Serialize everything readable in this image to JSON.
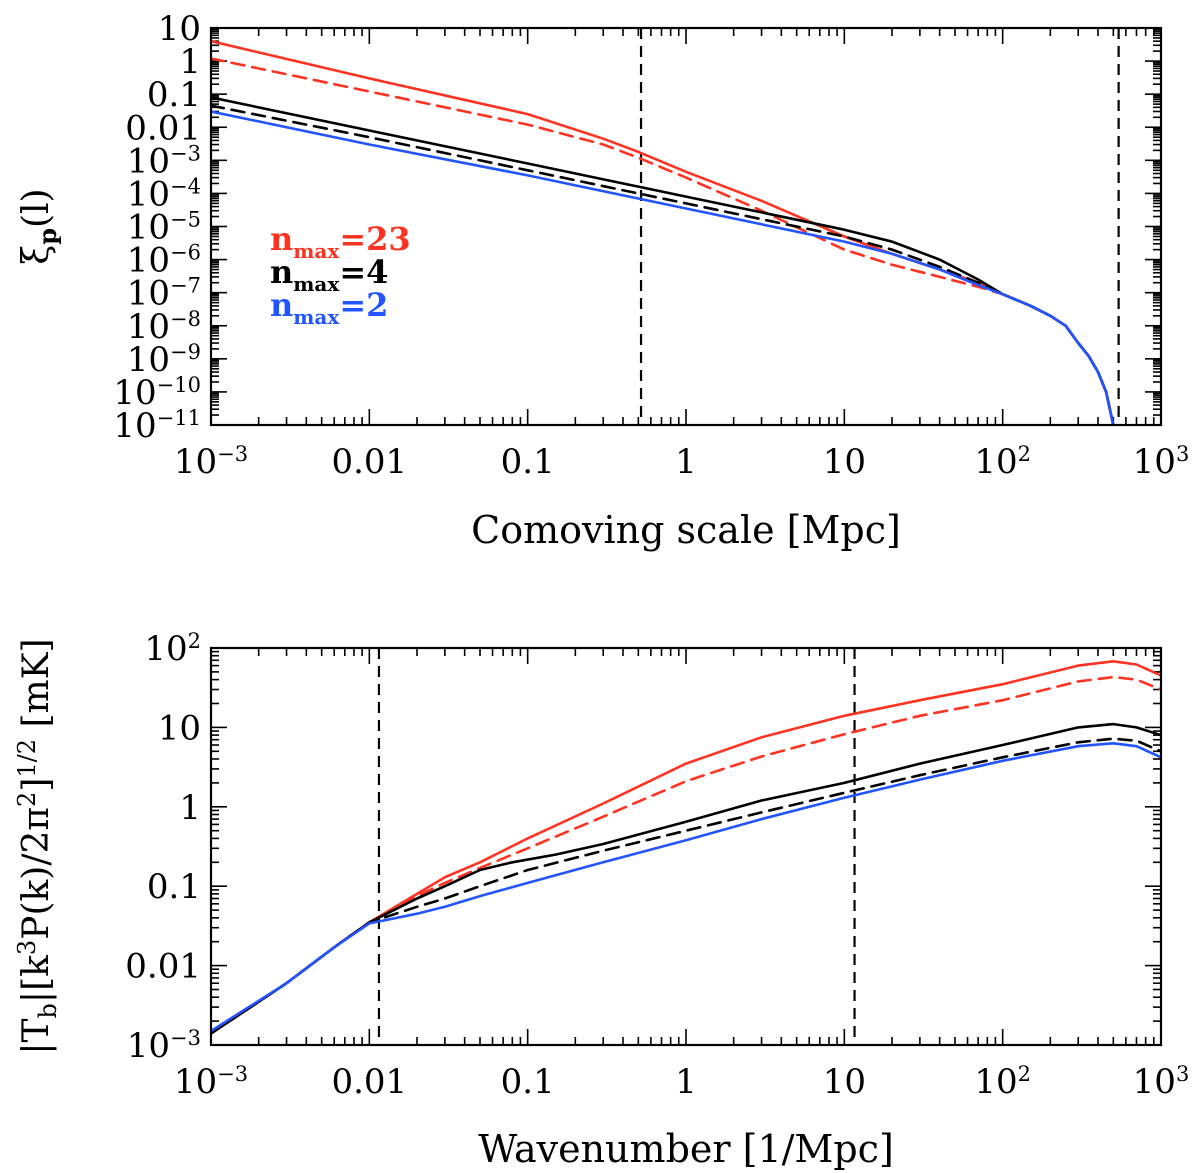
{
  "chart_data": [
    {
      "type": "line",
      "xlabel": "Comoving scale [Mpc]",
      "ylabel_symbol": "ξ",
      "ylabel_sub": "p",
      "ylabel_arg": "(l)",
      "x_scale": "log",
      "y_scale": "log",
      "xlim": [
        0.001,
        1000
      ],
      "ylim": [
        1e-11,
        10
      ],
      "x_ticks": [
        {
          "value": 0.001,
          "base": "10",
          "exp": "−3"
        },
        {
          "value": 0.01,
          "text": "0.01"
        },
        {
          "value": 0.1,
          "text": "0.1"
        },
        {
          "value": 1,
          "text": "1"
        },
        {
          "value": 10,
          "text": "10"
        },
        {
          "value": 100,
          "base": "10",
          "exp": "2"
        },
        {
          "value": 1000,
          "base": "10",
          "exp": "3"
        }
      ],
      "y_ticks": [
        {
          "value": 10,
          "text": "10"
        },
        {
          "value": 1,
          "text": "1"
        },
        {
          "value": 0.1,
          "text": "0.1"
        },
        {
          "value": 0.01,
          "text": "0.01"
        },
        {
          "value": 0.001,
          "base": "10",
          "exp": "−3"
        },
        {
          "value": 0.0001,
          "base": "10",
          "exp": "−4"
        },
        {
          "value": 1e-05,
          "base": "10",
          "exp": "−5"
        },
        {
          "value": 1e-06,
          "base": "10",
          "exp": "−6"
        },
        {
          "value": 1e-07,
          "base": "10",
          "exp": "−7"
        },
        {
          "value": 1e-08,
          "base": "10",
          "exp": "−8"
        },
        {
          "value": 1e-09,
          "base": "10",
          "exp": "−9"
        },
        {
          "value": 1e-10,
          "base": "10",
          "exp": "−10"
        },
        {
          "value": 1e-11,
          "base": "10",
          "exp": "−11"
        }
      ],
      "vlines": [
        0.52,
        540
      ],
      "legend": {
        "placement": "left",
        "entries": [
          {
            "main": "n",
            "sub": "max",
            "value": "=23",
            "color": "#ff3322"
          },
          {
            "main": "n",
            "sub": "max",
            "value": "=4",
            "color": "#000000"
          },
          {
            "main": "n",
            "sub": "max",
            "value": "=2",
            "color": "#2255ff"
          }
        ]
      },
      "series": [
        {
          "color": "#ff3322",
          "style": "solid",
          "x": [
            0.001,
            0.01,
            0.1,
            0.3,
            0.5,
            1,
            3,
            10,
            20,
            40,
            70,
            100,
            150,
            200,
            250,
            300,
            350,
            400,
            450,
            500
          ],
          "y": [
            4,
            0.3,
            0.025,
            0.0045,
            0.0018,
            0.00045,
            6e-05,
            5e-06,
            1.5e-06,
            5e-07,
            2e-07,
            9e-08,
            4e-08,
            2e-08,
            1e-08,
            3e-09,
            1.2e-09,
            4e-10,
            1e-10,
            1e-11
          ]
        },
        {
          "color": "#ff3322",
          "style": "dashed",
          "x": [
            0.001,
            0.01,
            0.1,
            0.3,
            0.5,
            1,
            3,
            10,
            20,
            40,
            70,
            100,
            150,
            200,
            250,
            300,
            350,
            400,
            450,
            500
          ],
          "y": [
            1.2,
            0.12,
            0.012,
            0.003,
            0.0012,
            0.0003,
            3e-05,
            2e-06,
            7e-07,
            3e-07,
            1.5e-07,
            9e-08,
            4e-08,
            2e-08,
            1e-08,
            3e-09,
            1.2e-09,
            4e-10,
            1e-10,
            1e-11
          ]
        },
        {
          "color": "#000000",
          "style": "solid",
          "x": [
            0.001,
            0.01,
            0.1,
            1,
            10,
            20,
            40,
            70,
            100,
            150,
            200,
            250,
            300,
            350,
            400,
            450,
            500
          ],
          "y": [
            0.08,
            0.008,
            0.0008,
            8e-05,
            8e-06,
            3.5e-06,
            1e-06,
            2.5e-07,
            9e-08,
            4e-08,
            2e-08,
            1e-08,
            3e-09,
            1.2e-09,
            4e-10,
            1e-10,
            1e-11
          ]
        },
        {
          "color": "#000000",
          "style": "dashed",
          "x": [
            0.001,
            0.01,
            0.1,
            1,
            10,
            20,
            40,
            70,
            100,
            150,
            200,
            250,
            300,
            350,
            400,
            450,
            500
          ],
          "y": [
            0.045,
            0.005,
            0.0005,
            5e-05,
            5e-06,
            2e-06,
            6e-07,
            2e-07,
            9e-08,
            4e-08,
            2e-08,
            1e-08,
            3e-09,
            1.2e-09,
            4e-10,
            1e-10,
            1e-11
          ]
        },
        {
          "color": "#2255ff",
          "style": "solid",
          "x": [
            0.001,
            0.01,
            0.1,
            1,
            10,
            20,
            40,
            70,
            100,
            150,
            200,
            250,
            300,
            350,
            400,
            450,
            500
          ],
          "y": [
            0.03,
            0.003,
            0.00035,
            3.5e-05,
            3.5e-06,
            1.5e-06,
            5e-07,
            1.7e-07,
            9e-08,
            4e-08,
            2e-08,
            1e-08,
            3e-09,
            1.2e-09,
            4e-10,
            1e-10,
            1e-11
          ]
        }
      ]
    },
    {
      "type": "line",
      "xlabel": "Wavenumber [1/Mpc]",
      "ylabel_parts": [
        "|T",
        "b",
        "|[k",
        "3",
        "P(k)/2π",
        "2",
        "]",
        "1/2",
        " [mK]"
      ],
      "x_scale": "log",
      "y_scale": "log",
      "xlim": [
        0.001,
        1000
      ],
      "ylim": [
        0.001,
        100
      ],
      "x_ticks": [
        {
          "value": 0.001,
          "base": "10",
          "exp": "−3"
        },
        {
          "value": 0.01,
          "text": "0.01"
        },
        {
          "value": 0.1,
          "text": "0.1"
        },
        {
          "value": 1,
          "text": "1"
        },
        {
          "value": 10,
          "text": "10"
        },
        {
          "value": 100,
          "base": "10",
          "exp": "2"
        },
        {
          "value": 1000,
          "base": "10",
          "exp": "3"
        }
      ],
      "y_ticks": [
        {
          "value": 100,
          "base": "10",
          "exp": "2"
        },
        {
          "value": 10,
          "text": "10"
        },
        {
          "value": 1,
          "text": "1"
        },
        {
          "value": 0.1,
          "text": "0.1"
        },
        {
          "value": 0.01,
          "text": "0.01"
        },
        {
          "value": 0.001,
          "base": "10",
          "exp": "−3"
        }
      ],
      "vlines": [
        0.0115,
        11.6
      ],
      "series": [
        {
          "color": "#ff3322",
          "style": "solid",
          "x": [
            0.001,
            0.003,
            0.006,
            0.01,
            0.02,
            0.03,
            0.05,
            0.1,
            0.3,
            1,
            3,
            10,
            30,
            100,
            300,
            500,
            700,
            1000
          ],
          "y": [
            0.0014,
            0.006,
            0.017,
            0.035,
            0.08,
            0.13,
            0.2,
            0.4,
            1.1,
            3.5,
            7.5,
            14,
            22,
            35,
            60,
            68,
            62,
            45
          ]
        },
        {
          "color": "#ff3322",
          "style": "dashed",
          "x": [
            0.001,
            0.003,
            0.006,
            0.01,
            0.02,
            0.03,
            0.05,
            0.1,
            0.3,
            1,
            3,
            10,
            30,
            100,
            300,
            500,
            700,
            1000
          ],
          "y": [
            0.0014,
            0.006,
            0.017,
            0.035,
            0.075,
            0.11,
            0.17,
            0.3,
            0.75,
            2.1,
            4.3,
            8.2,
            14,
            22,
            38,
            43,
            40,
            30
          ]
        },
        {
          "color": "#000000",
          "style": "solid",
          "x": [
            0.001,
            0.003,
            0.006,
            0.01,
            0.02,
            0.03,
            0.05,
            0.08,
            0.15,
            0.3,
            1,
            3,
            10,
            30,
            100,
            300,
            500,
            700,
            1000
          ],
          "y": [
            0.0014,
            0.006,
            0.017,
            0.035,
            0.07,
            0.1,
            0.16,
            0.2,
            0.25,
            0.34,
            0.65,
            1.2,
            2,
            3.5,
            6,
            10,
            11,
            10,
            8
          ]
        },
        {
          "color": "#000000",
          "style": "dashed",
          "x": [
            0.001,
            0.003,
            0.006,
            0.01,
            0.02,
            0.03,
            0.05,
            0.1,
            0.3,
            1,
            3,
            10,
            30,
            100,
            300,
            500,
            700,
            1000
          ],
          "y": [
            0.0014,
            0.006,
            0.017,
            0.035,
            0.055,
            0.07,
            0.1,
            0.16,
            0.28,
            0.5,
            0.85,
            1.5,
            2.5,
            4.2,
            6.5,
            7.2,
            6.8,
            5
          ]
        },
        {
          "color": "#2255ff",
          "style": "solid",
          "x": [
            0.001,
            0.003,
            0.006,
            0.01,
            0.02,
            0.03,
            0.05,
            0.1,
            0.3,
            1,
            3,
            10,
            30,
            100,
            300,
            500,
            700,
            1000
          ],
          "y": [
            0.0015,
            0.006,
            0.017,
            0.034,
            0.045,
            0.055,
            0.075,
            0.11,
            0.2,
            0.38,
            0.7,
            1.3,
            2.2,
            3.8,
            5.8,
            6.3,
            5.8,
            4.2
          ]
        }
      ]
    }
  ]
}
